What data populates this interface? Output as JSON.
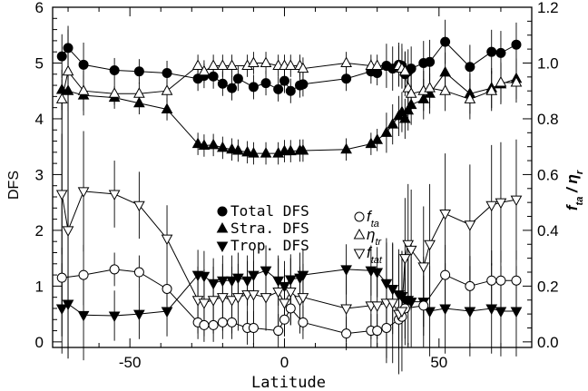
{
  "chart_data": {
    "type": "scatter",
    "xlabel": "Latitude",
    "ylabel": "DFS",
    "ylabel_right": "f_ta / η_r",
    "xlim": [
      -75,
      80
    ],
    "ylim": [
      -0.1,
      6.0
    ],
    "ylim_right": [
      -0.02,
      1.2
    ],
    "x_ticks": [
      -50,
      0,
      50
    ],
    "y_ticks": [
      0,
      1,
      2,
      3,
      4,
      5,
      6
    ],
    "y_ticks_right": [
      0.0,
      0.2,
      0.4,
      0.6,
      0.8,
      1.0,
      1.2
    ],
    "legend_left": [
      "Total DFS",
      "Stra. DFS",
      "Trop. DFS"
    ],
    "legend_right": [
      {
        "base": "f",
        "sub": "ta"
      },
      {
        "base": "η",
        "sub": "tr"
      },
      {
        "base": "f",
        "sub": "tat"
      }
    ],
    "series": [
      {
        "name": "Total DFS",
        "marker": "circle-filled",
        "axis": "left",
        "x": [
          -72,
          -70,
          -65,
          -55,
          -47,
          -38,
          -28,
          -26,
          -23,
          -20,
          -17,
          -15,
          -10,
          -6,
          -2,
          0,
          2,
          5,
          6,
          20,
          28,
          30,
          33,
          35,
          37,
          38,
          39,
          40,
          41,
          45,
          47,
          52,
          60,
          67,
          70,
          75
        ],
        "y": [
          5.12,
          5.27,
          4.97,
          4.87,
          4.85,
          4.82,
          4.72,
          4.77,
          4.76,
          4.63,
          4.55,
          4.72,
          4.57,
          4.64,
          4.53,
          4.68,
          4.5,
          4.6,
          4.62,
          4.72,
          4.85,
          4.82,
          4.95,
          4.9,
          4.97,
          4.95,
          4.8,
          4.85,
          4.9,
          5.0,
          5.02,
          5.38,
          4.93,
          5.2,
          5.18,
          5.33
        ]
      },
      {
        "name": "Stra. DFS",
        "marker": "triangle-up-filled",
        "axis": "left",
        "x": [
          -72,
          -70,
          -65,
          -55,
          -47,
          -38,
          -28,
          -26,
          -23,
          -20,
          -17,
          -15,
          -12,
          -10,
          -6,
          -2,
          0,
          2,
          5,
          6,
          20,
          28,
          30,
          33,
          35,
          37,
          38,
          39,
          40,
          41,
          45,
          47,
          52,
          60,
          67,
          70,
          75
        ],
        "y": [
          4.52,
          4.5,
          4.42,
          4.38,
          4.28,
          4.17,
          3.55,
          3.52,
          3.53,
          3.48,
          3.45,
          3.43,
          3.4,
          3.38,
          3.38,
          3.38,
          3.42,
          3.42,
          3.43,
          3.43,
          3.45,
          3.55,
          3.62,
          3.75,
          3.9,
          4.05,
          4.12,
          4.0,
          4.15,
          4.25,
          4.35,
          4.45,
          4.83,
          4.45,
          4.55,
          4.62,
          4.72
        ]
      },
      {
        "name": "Trop. DFS",
        "marker": "triangle-down-filled",
        "axis": "left",
        "x": [
          -72,
          -70,
          -65,
          -55,
          -47,
          -38,
          -28,
          -26,
          -23,
          -20,
          -17,
          -15,
          -12,
          -10,
          -6,
          -2,
          0,
          2,
          5,
          6,
          20,
          28,
          30,
          33,
          35,
          37,
          38,
          39,
          40,
          41,
          45,
          47,
          52,
          60,
          67,
          70,
          75
        ],
        "y": [
          0.6,
          0.68,
          0.48,
          0.47,
          0.5,
          0.55,
          1.2,
          1.18,
          1.05,
          1.1,
          1.1,
          1.15,
          1.1,
          1.2,
          1.28,
          1.1,
          1.0,
          1.12,
          1.15,
          1.2,
          1.3,
          1.28,
          1.25,
          1.05,
          0.95,
          0.85,
          0.82,
          0.75,
          0.75,
          0.72,
          0.72,
          0.55,
          0.6,
          0.55,
          0.6,
          0.55,
          0.55
        ]
      },
      {
        "name": "f_ta",
        "marker": "circle-open",
        "axis": "right",
        "x": [
          -72,
          -65,
          -55,
          -47,
          -38,
          -28,
          -26,
          -23,
          -20,
          -17,
          -12,
          -10,
          -2,
          0,
          2,
          6,
          20,
          28,
          30,
          33,
          37,
          38,
          39,
          45,
          52,
          60,
          67,
          70,
          75
        ],
        "y": [
          0.23,
          0.24,
          0.26,
          0.25,
          0.19,
          0.07,
          0.06,
          0.06,
          0.07,
          0.07,
          0.05,
          0.05,
          0.04,
          0.08,
          0.12,
          0.07,
          0.03,
          0.04,
          0.04,
          0.05,
          0.08,
          0.09,
          0.12,
          0.13,
          0.24,
          0.2,
          0.22,
          0.22,
          0.22
        ]
      },
      {
        "name": "η_tr",
        "marker": "triangle-up-open",
        "axis": "right",
        "x": [
          -72,
          -70,
          -65,
          -55,
          -47,
          -38,
          -28,
          -26,
          -23,
          -20,
          -17,
          -12,
          -10,
          -6,
          -2,
          0,
          2,
          5,
          6,
          20,
          28,
          30,
          37,
          38,
          39,
          40,
          41,
          45,
          47,
          52,
          60,
          67,
          70,
          75
        ],
        "y": [
          0.87,
          0.97,
          0.9,
          0.89,
          0.89,
          0.9,
          0.99,
          0.97,
          0.99,
          0.99,
          0.99,
          0.99,
          1.0,
          1.0,
          0.99,
          0.99,
          0.99,
          0.99,
          0.98,
          1.0,
          0.99,
          0.99,
          0.99,
          0.98,
          0.97,
          0.91,
          0.89,
          0.9,
          0.91,
          0.9,
          0.87,
          0.9,
          0.93,
          0.93
        ]
      },
      {
        "name": "f_tat",
        "marker": "triangle-down-open",
        "axis": "right",
        "x": [
          -72,
          -70,
          -65,
          -55,
          -47,
          -38,
          -28,
          -26,
          -23,
          -20,
          -17,
          -15,
          -12,
          -10,
          -6,
          -2,
          0,
          2,
          5,
          6,
          20,
          28,
          30,
          33,
          35,
          37,
          38,
          39,
          40,
          41,
          45,
          47,
          52,
          60,
          67,
          70,
          75
        ],
        "y": [
          0.53,
          0.4,
          0.54,
          0.53,
          0.49,
          0.37,
          0.15,
          0.14,
          0.15,
          0.16,
          0.15,
          0.16,
          0.17,
          0.17,
          0.16,
          0.18,
          0.14,
          0.18,
          0.15,
          0.16,
          0.12,
          0.13,
          0.13,
          0.14,
          0.14,
          0.1,
          0.11,
          0.3,
          0.35,
          0.33,
          0.27,
          0.35,
          0.46,
          0.42,
          0.49,
          0.5,
          0.51
        ]
      }
    ]
  }
}
